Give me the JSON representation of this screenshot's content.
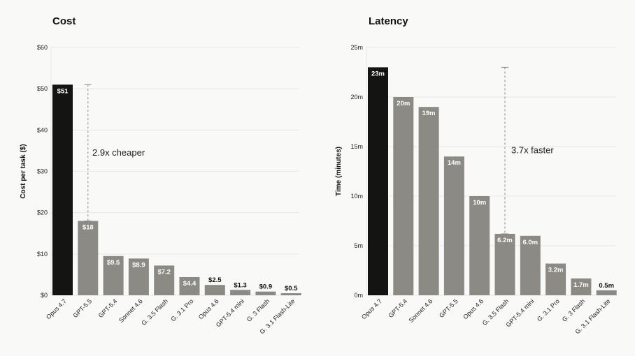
{
  "chart_data": [
    {
      "type": "bar",
      "title": "Cost",
      "ylabel": "Cost per task ($)",
      "xlabel": "",
      "ylim": [
        0,
        60
      ],
      "yticks": [
        0,
        10,
        20,
        30,
        40,
        50,
        60
      ],
      "ytick_labels": [
        "$0",
        "$10",
        "$20",
        "$30",
        "$40",
        "$50",
        "$60"
      ],
      "categories": [
        "Opus 4.7",
        "GPT-5.5",
        "GPT-5.4",
        "Sonnet 4.6",
        "G. 3.5 Flash",
        "G. 3.1 Pro",
        "Opus 4.6",
        "GPT-5.4 mini",
        "G. 3 Flash",
        "G. 3.1 Flash-Lite"
      ],
      "values": [
        51,
        18,
        9.5,
        8.9,
        7.2,
        4.4,
        2.5,
        1.3,
        0.9,
        0.5
      ],
      "data_labels": [
        "$51",
        "$18",
        "$9.5",
        "$8.9",
        "$7.2",
        "$4.4",
        "$2.5",
        "$1.3",
        "$0.9",
        "$0.5"
      ],
      "highlight_color": "#141413",
      "bar_color": "#8c8a84",
      "grid": true,
      "annotation": {
        "text": "2.9x cheaper",
        "from": 51,
        "to": 18,
        "at_category": "GPT-5.5"
      }
    },
    {
      "type": "bar",
      "title": "Latency",
      "ylabel": "Time (minutes)",
      "xlabel": "",
      "ylim": [
        0,
        25
      ],
      "yticks": [
        0,
        5,
        10,
        15,
        20,
        25
      ],
      "ytick_labels": [
        "0m",
        "5m",
        "10m",
        "15m",
        "20m",
        "25m"
      ],
      "categories": [
        "Opus 4.7",
        "GPT-5.4",
        "Sonnet 4.6",
        "GPT-5.5",
        "Opus 4.6",
        "G. 3.5 Flash",
        "GPT-5.4 mini",
        "G. 3.1 Pro",
        "G. 3 Flash",
        "G. 3.1 Flash-Lite"
      ],
      "values": [
        23,
        20,
        19,
        14,
        10,
        6.2,
        6.0,
        3.2,
        1.7,
        0.5
      ],
      "data_labels": [
        "23m",
        "20m",
        "19m",
        "14m",
        "10m",
        "6.2m",
        "6.0m",
        "3.2m",
        "1.7m",
        "0.5m"
      ],
      "highlight_color": "#141413",
      "bar_color": "#8c8a84",
      "grid": true,
      "annotation": {
        "text": "3.7x faster",
        "from": 23,
        "to": 6.2,
        "at_category": "G. 3.5 Flash"
      }
    }
  ]
}
